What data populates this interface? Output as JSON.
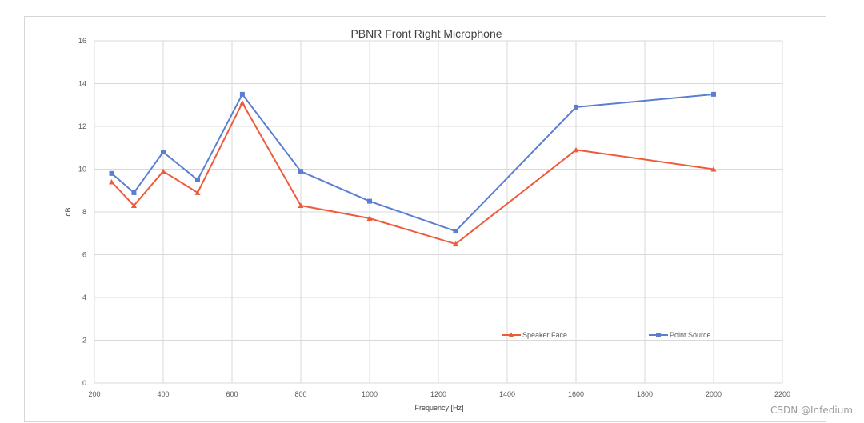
{
  "chart_data": {
    "type": "line",
    "title": "PBNR Front Right Microphone",
    "xlabel": "Frequency [Hz]",
    "ylabel": "dB",
    "xlim": [
      200,
      2200
    ],
    "ylim": [
      0,
      16
    ],
    "xticks": [
      200,
      400,
      600,
      800,
      1000,
      1200,
      1400,
      1600,
      1800,
      2000,
      2200
    ],
    "yticks": [
      0,
      2,
      4,
      6,
      8,
      10,
      12,
      14,
      16
    ],
    "grid": true,
    "legend_position": "bottom-right",
    "series": [
      {
        "name": "Speaker Face",
        "color": "#ef5a3c",
        "marker": "triangle",
        "x": [
          250,
          315,
          400,
          500,
          630,
          800,
          1000,
          1250,
          1600,
          2000
        ],
        "y": [
          9.4,
          8.3,
          9.9,
          8.9,
          13.1,
          8.3,
          7.7,
          6.5,
          10.9,
          10.0
        ]
      },
      {
        "name": "Point Source",
        "color": "#5b7fcf",
        "marker": "square",
        "x": [
          250,
          315,
          400,
          500,
          630,
          800,
          1000,
          1250,
          1600,
          2000
        ],
        "y": [
          9.8,
          8.9,
          10.8,
          9.5,
          13.5,
          9.9,
          8.5,
          7.1,
          12.9,
          13.5
        ]
      }
    ]
  },
  "watermark": "CSDN @Infedium"
}
